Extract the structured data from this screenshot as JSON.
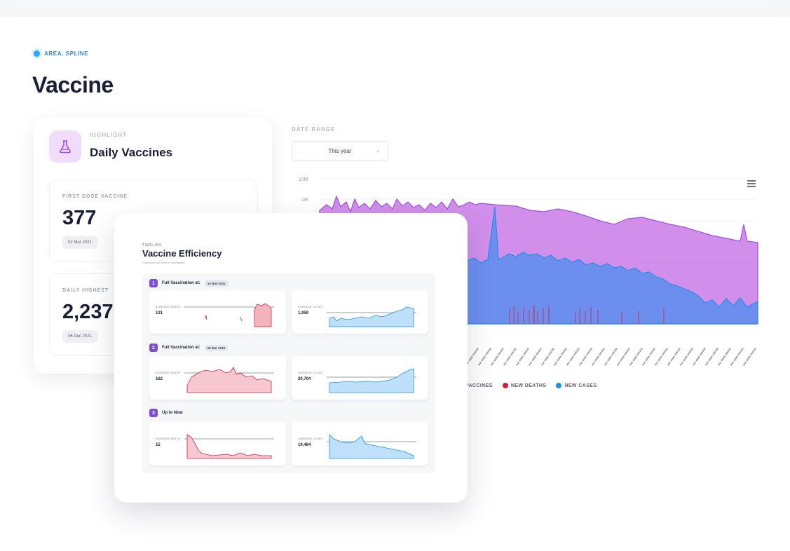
{
  "breadcrumb": "AREA, SPLINE",
  "title": "Vaccine",
  "highlight": {
    "label": "HIGHLIGHT",
    "title": "Daily Vaccines",
    "icon": "flask-icon"
  },
  "stats": [
    {
      "label": "FIRST DOSE VACCINE",
      "value": "377",
      "date": "02 Mar 2021"
    },
    {
      "label": "DAILY HIGHEST",
      "value": "2,237",
      "date": "06 Dec 2021"
    }
  ],
  "date_range": {
    "label": "DATE RANGE",
    "value": "This year"
  },
  "chart_axis": {
    "y_ticks": [
      "10M",
      "1M"
    ]
  },
  "legend": [
    {
      "label": "VACCINES",
      "color": "#c97be8"
    },
    {
      "label": "NEW DEATHS",
      "color": "#d21f3c"
    },
    {
      "label": "NEW CASES",
      "color": "#1f8fe6"
    }
  ],
  "efficiency": {
    "label": "TIMELINE",
    "title": "Vaccine Efficiency",
    "subtitle": "Population full dose of vaccination",
    "sections": [
      {
        "num": "1",
        "title": "Full Vaccination at:",
        "date": "14 Nov 2021",
        "deaths_label": "AVERAGE DEATH",
        "deaths_value": "131",
        "cases_label": "AVERAGE CASES",
        "cases_value": "1,959"
      },
      {
        "num": "2",
        "title": "Full Vaccination at:",
        "date": "06 Mar 2022",
        "deaths_label": "AVERAGE DEATH",
        "deaths_value": "162",
        "cases_label": "AVERAGE CASES",
        "cases_value": "20,704"
      },
      {
        "num": "3",
        "title": "Up to Now",
        "date": "",
        "deaths_label": "AVERAGE DEATH",
        "deaths_value": "15",
        "cases_label": "AVERAGE CASES",
        "cases_value": "19,484"
      }
    ]
  },
  "colors": {
    "accent": "#7c4ddc",
    "vaccines": "#c97be8",
    "deaths": "#d21f3c",
    "cases": "#1f8fe6"
  }
}
